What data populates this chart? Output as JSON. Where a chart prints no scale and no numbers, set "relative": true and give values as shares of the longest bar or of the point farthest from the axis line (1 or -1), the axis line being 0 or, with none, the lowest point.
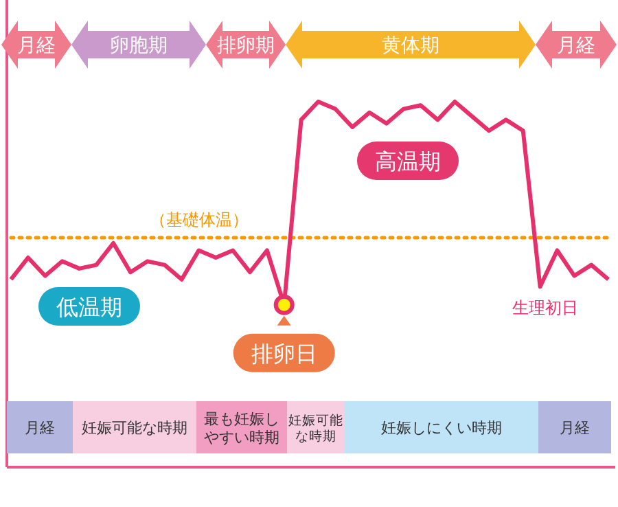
{
  "chart_data": {
    "type": "line",
    "relative": true,
    "categories": [
      null,
      null,
      null,
      null,
      null,
      null,
      null,
      null,
      null,
      null,
      null,
      null,
      null,
      null,
      null,
      null,
      null,
      null,
      null,
      null,
      null,
      null,
      null,
      null,
      null,
      null,
      null,
      null,
      null,
      null,
      null,
      null,
      null,
      null,
      null,
      null
    ],
    "series": [
      {
        "color": "#e6306c",
        "values": [
          0.51,
          0.57,
          0.52,
          0.56,
          0.54,
          0.55,
          0.61,
          0.53,
          0.56,
          0.55,
          0.51,
          0.59,
          0.57,
          0.59,
          0.53,
          0.59,
          0.44,
          0.95,
          1.0,
          0.98,
          0.93,
          0.97,
          0.94,
          0.98,
          0.99,
          0.95,
          1.0,
          0.96,
          0.92,
          0.95,
          0.92,
          0.49,
          0.59,
          0.52,
          0.55,
          0.51
        ]
      }
    ],
    "ref_lines": [
      {
        "axis": "y",
        "value": 0.625,
        "label": "（基礎体温）",
        "color": "#f39800",
        "line_style": "dotted"
      }
    ],
    "annotations": [
      "月経",
      "卵胞期",
      "排卵期",
      "黄体期",
      "月経",
      "月経",
      "妊娠可能な時期",
      "最も妊娠しやすい時期",
      "妊娠可能な時期",
      "妊娠しにくい時期",
      "月経",
      "低温期",
      "高温期",
      "排卵日",
      "生理初日"
    ]
  }
}
